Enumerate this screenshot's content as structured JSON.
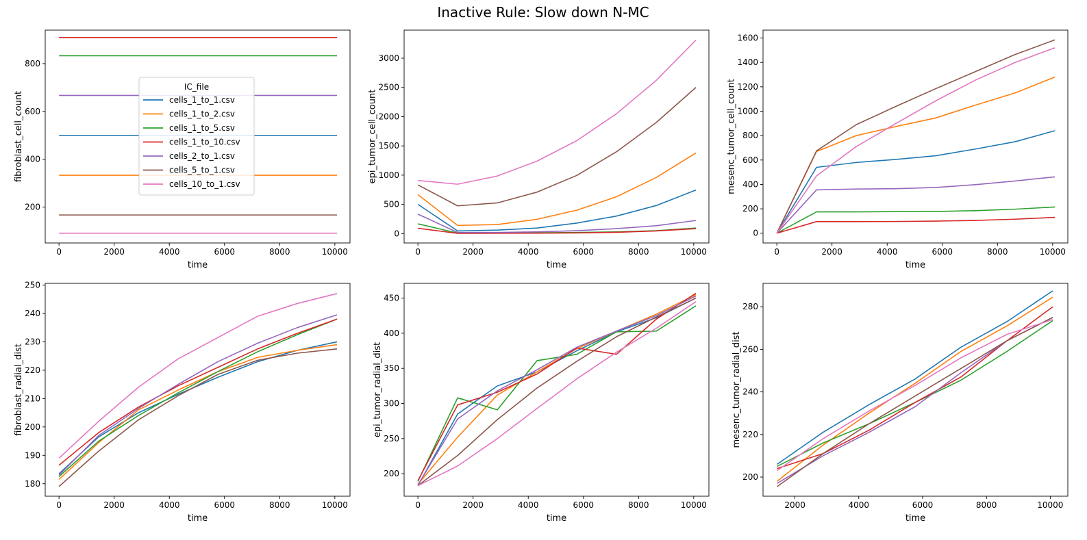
{
  "figure_title": "Inactive Rule: Slow down N-MC",
  "colors": {
    "cells_1_to_1.csv": "#1f77b4",
    "cells_1_to_2.csv": "#ff7f0e",
    "cells_1_to_5.csv": "#2ca02c",
    "cells_1_to_10.csv": "#d62728",
    "cells_2_to_1.csv": "#9467bd",
    "cells_5_to_1.csv": "#8c564b",
    "cells_10_to_1.csv": "#e377c2"
  },
  "legend": {
    "title": "IC_file",
    "entries": [
      "cells_1_to_1.csv",
      "cells_1_to_2.csv",
      "cells_1_to_5.csv",
      "cells_1_to_10.csv",
      "cells_2_to_1.csv",
      "cells_5_to_1.csv",
      "cells_10_to_1.csv"
    ],
    "placement": "center-left of first subplot"
  },
  "chart_data": [
    {
      "type": "line",
      "xlabel": "time",
      "ylabel": "fibroblast_cell_count",
      "xlim": [
        -500,
        10550
      ],
      "ylim": [
        50,
        940
      ],
      "xticks": [
        0,
        2000,
        4000,
        6000,
        8000,
        10000
      ],
      "yticks": [
        200,
        400,
        600,
        800
      ],
      "x": [
        0,
        1440,
        2880,
        4320,
        5760,
        7200,
        8640,
        10080
      ],
      "series": [
        {
          "name": "cells_1_to_1.csv",
          "values": [
            500,
            500,
            500,
            500,
            500,
            500,
            500,
            500
          ]
        },
        {
          "name": "cells_1_to_2.csv",
          "values": [
            333,
            333,
            333,
            333,
            333,
            333,
            333,
            333
          ]
        },
        {
          "name": "cells_1_to_5.csv",
          "values": [
            833,
            833,
            833,
            833,
            833,
            833,
            833,
            833
          ]
        },
        {
          "name": "cells_1_to_10.csv",
          "values": [
            909,
            909,
            909,
            909,
            909,
            909,
            909,
            909
          ]
        },
        {
          "name": "cells_2_to_1.csv",
          "values": [
            667,
            667,
            667,
            667,
            667,
            667,
            667,
            667
          ]
        },
        {
          "name": "cells_5_to_1.csv",
          "values": [
            167,
            167,
            167,
            167,
            167,
            167,
            167,
            167
          ]
        },
        {
          "name": "cells_10_to_1.csv",
          "values": [
            91,
            91,
            91,
            91,
            91,
            91,
            91,
            91
          ]
        }
      ]
    },
    {
      "type": "line",
      "xlabel": "time",
      "ylabel": "epi_tumor_cell_count",
      "xlim": [
        -500,
        10550
      ],
      "ylim": [
        -160,
        3480
      ],
      "xticks": [
        0,
        2000,
        4000,
        6000,
        8000,
        10000
      ],
      "yticks": [
        0,
        500,
        1000,
        1500,
        2000,
        2500,
        3000
      ],
      "x": [
        0,
        1440,
        2880,
        4320,
        5760,
        7200,
        8640,
        10080
      ],
      "series": [
        {
          "name": "cells_1_to_1.csv",
          "values": [
            500,
            45,
            60,
            95,
            180,
            300,
            480,
            745
          ]
        },
        {
          "name": "cells_1_to_2.csv",
          "values": [
            667,
            140,
            155,
            245,
            400,
            630,
            960,
            1380
          ]
        },
        {
          "name": "cells_1_to_5.csv",
          "values": [
            167,
            10,
            12,
            15,
            20,
            30,
            50,
            95
          ]
        },
        {
          "name": "cells_1_to_10.csv",
          "values": [
            91,
            5,
            6,
            8,
            12,
            22,
            45,
            85
          ]
        },
        {
          "name": "cells_2_to_1.csv",
          "values": [
            333,
            20,
            20,
            30,
            50,
            85,
            135,
            225
          ]
        },
        {
          "name": "cells_5_to_1.csv",
          "values": [
            833,
            475,
            525,
            710,
            995,
            1400,
            1900,
            2500
          ]
        },
        {
          "name": "cells_10_to_1.csv",
          "values": [
            909,
            845,
            985,
            1240,
            1590,
            2050,
            2620,
            3310
          ]
        }
      ]
    },
    {
      "type": "line",
      "xlabel": "time",
      "ylabel": "mesenc_tumor_cell_count",
      "xlim": [
        -500,
        10550
      ],
      "ylim": [
        -80,
        1665
      ],
      "xticks": [
        0,
        2000,
        4000,
        6000,
        8000,
        10000
      ],
      "yticks": [
        0,
        200,
        400,
        600,
        800,
        1000,
        1200,
        1400,
        1600
      ],
      "x": [
        0,
        1440,
        2880,
        4320,
        5760,
        7200,
        8640,
        10080
      ],
      "series": [
        {
          "name": "cells_1_to_1.csv",
          "values": [
            0,
            540,
            580,
            605,
            635,
            690,
            750,
            840
          ]
        },
        {
          "name": "cells_1_to_2.csv",
          "values": [
            0,
            670,
            800,
            875,
            945,
            1050,
            1150,
            1280
          ]
        },
        {
          "name": "cells_1_to_5.csv",
          "values": [
            0,
            175,
            175,
            177,
            178,
            185,
            197,
            215
          ]
        },
        {
          "name": "cells_1_to_10.csv",
          "values": [
            0,
            95,
            95,
            96,
            99,
            105,
            115,
            130
          ]
        },
        {
          "name": "cells_2_to_1.csv",
          "values": [
            0,
            355,
            362,
            365,
            375,
            398,
            428,
            462
          ]
        },
        {
          "name": "cells_5_to_1.csv",
          "values": [
            0,
            675,
            890,
            1040,
            1185,
            1325,
            1465,
            1585
          ]
        },
        {
          "name": "cells_10_to_1.csv",
          "values": [
            0,
            470,
            710,
            900,
            1085,
            1255,
            1400,
            1520
          ]
        }
      ]
    },
    {
      "type": "line",
      "xlabel": "time",
      "ylabel": "fibroblast_radial_dist",
      "xlim": [
        -500,
        10550
      ],
      "ylim": [
        175.6,
        250.6
      ],
      "xticks": [
        0,
        2000,
        4000,
        6000,
        8000,
        10000
      ],
      "yticks": [
        180,
        190,
        200,
        210,
        220,
        230,
        240,
        250
      ],
      "x": [
        0,
        1440,
        2880,
        4320,
        5760,
        7200,
        8640,
        10080
      ],
      "series": [
        {
          "name": "cells_1_to_1.csv",
          "values": [
            183.5,
            196.5,
            205,
            211.5,
            217.5,
            223,
            227,
            230
          ]
        },
        {
          "name": "cells_1_to_2.csv",
          "values": [
            181.5,
            194.5,
            206,
            213,
            219.5,
            224.5,
            227,
            229
          ]
        },
        {
          "name": "cells_1_to_5.csv",
          "values": [
            182.5,
            195,
            204,
            212,
            219.5,
            226.5,
            232.5,
            238
          ]
        },
        {
          "name": "cells_1_to_10.csv",
          "values": [
            186.5,
            198,
            207,
            214.5,
            221,
            227.5,
            233,
            238
          ]
        },
        {
          "name": "cells_2_to_1.csv",
          "values": [
            183,
            197,
            206.5,
            215,
            223,
            229.5,
            235,
            239.5
          ]
        },
        {
          "name": "cells_5_to_1.csv",
          "values": [
            179,
            191.5,
            202.5,
            211,
            218.5,
            223.5,
            226,
            227.5
          ]
        },
        {
          "name": "cells_10_to_1.csv",
          "values": [
            189,
            202,
            214,
            224,
            231.5,
            239,
            243.5,
            247
          ]
        }
      ]
    },
    {
      "type": "line",
      "xlabel": "time",
      "ylabel": "epi_tumor_radial_dist",
      "xlim": [
        -500,
        10550
      ],
      "ylim": [
        168,
        471
      ],
      "xticks": [
        0,
        2000,
        4000,
        6000,
        8000,
        10000
      ],
      "yticks": [
        200,
        250,
        300,
        350,
        400,
        450
      ],
      "x": [
        0,
        1440,
        2880,
        4320,
        5760,
        7200,
        8640,
        10080
      ],
      "series": [
        {
          "name": "cells_1_to_1.csv",
          "values": [
            183,
            285,
            325,
            345,
            375,
            402,
            422,
            450
          ]
        },
        {
          "name": "cells_1_to_2.csv",
          "values": [
            185,
            252,
            312,
            345,
            378,
            403,
            427,
            455
          ]
        },
        {
          "name": "cells_1_to_5.csv",
          "values": [
            189,
            308,
            291,
            361,
            370,
            402,
            403,
            439
          ]
        },
        {
          "name": "cells_1_to_10.csv",
          "values": [
            190,
            298,
            316,
            342,
            379,
            370,
            420,
            457
          ]
        },
        {
          "name": "cells_2_to_1.csv",
          "values": [
            184,
            278,
            318,
            348,
            380,
            403,
            425,
            453
          ]
        },
        {
          "name": "cells_5_to_1.csv",
          "values": [
            183,
            226,
            277,
            322,
            360,
            395,
            423,
            450
          ]
        },
        {
          "name": "cells_10_to_1.csv",
          "values": [
            183,
            211,
            250,
            293,
            335,
            373,
            407,
            445
          ]
        }
      ]
    },
    {
      "type": "line",
      "xlabel": "time",
      "ylabel": "mesenc_tumor_radial_dist",
      "xlim": [
        1000,
        10550
      ],
      "ylim": [
        191,
        291
      ],
      "xticks": [
        2000,
        4000,
        6000,
        8000,
        10000
      ],
      "yticks": [
        200,
        220,
        240,
        260,
        280
      ],
      "x": [
        1440,
        2880,
        4320,
        5760,
        7200,
        8640,
        10080
      ],
      "series": [
        {
          "name": "cells_1_to_1.csv",
          "values": [
            206,
            221,
            234,
            246,
            261,
            273,
            287.5
          ]
        },
        {
          "name": "cells_1_to_2.csv",
          "values": [
            198,
            215,
            230,
            244,
            259,
            271,
            284.5
          ]
        },
        {
          "name": "cells_1_to_5.csv",
          "values": [
            205,
            216,
            225,
            235,
            245.5,
            259,
            273.5
          ]
        },
        {
          "name": "cells_1_to_10.csv",
          "values": [
            204,
            211,
            222,
            235,
            247,
            264,
            280
          ]
        },
        {
          "name": "cells_2_to_1.csv",
          "values": [
            197,
            210,
            221,
            233,
            249,
            264,
            275
          ]
        },
        {
          "name": "cells_5_to_1.csv",
          "values": [
            195.5,
            211,
            225,
            238,
            251,
            264,
            275
          ]
        },
        {
          "name": "cells_10_to_1.csv",
          "values": [
            203,
            218,
            231,
            243,
            256,
            267,
            274
          ]
        }
      ]
    }
  ]
}
